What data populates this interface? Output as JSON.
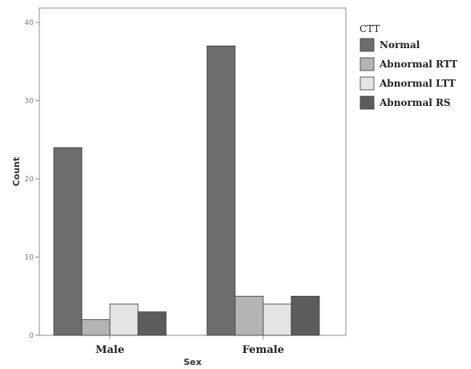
{
  "chart_data": {
    "type": "bar",
    "categories": [
      "Male",
      "Female"
    ],
    "series": [
      {
        "name": "Normal",
        "values": [
          24,
          37
        ],
        "color": "#6d6d6d"
      },
      {
        "name": "Abnormal RTT",
        "values": [
          2,
          5
        ],
        "color": "#b4b4b4"
      },
      {
        "name": "Abnormal LTT",
        "values": [
          4,
          4
        ],
        "color": "#e4e4e4"
      },
      {
        "name": "Abnormal RS",
        "values": [
          3,
          5
        ],
        "color": "#5c5c5c"
      }
    ],
    "xlabel": "Sex",
    "ylabel": "Count",
    "ylim": [
      0,
      40
    ],
    "yticks": [
      0,
      10,
      20,
      30,
      40
    ],
    "legend_title": "CTT",
    "legend_position": "right",
    "grid": false
  }
}
